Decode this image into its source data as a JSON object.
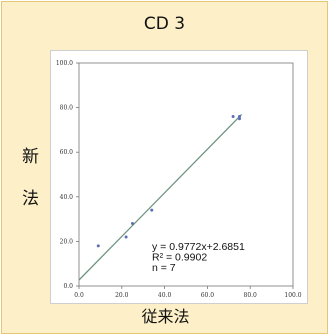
{
  "chart_data": {
    "type": "scatter",
    "title": "CD 3",
    "xlabel": "従来法",
    "ylabel_chars": [
      "新",
      "法"
    ],
    "xlim": [
      0,
      100
    ],
    "ylim": [
      0,
      100
    ],
    "x_ticks": [
      "0.0",
      "20.0",
      "40.0",
      "60.0",
      "80.0",
      "100.0"
    ],
    "y_ticks": [
      "0.0",
      "20.0",
      "40.0",
      "60.0",
      "80.0",
      "100.0"
    ],
    "points": [
      {
        "x": 9,
        "y": 18
      },
      {
        "x": 22,
        "y": 22
      },
      {
        "x": 25,
        "y": 28
      },
      {
        "x": 34,
        "y": 34
      },
      {
        "x": 72,
        "y": 76
      },
      {
        "x": 75,
        "y": 76
      },
      {
        "x": 75,
        "y": 75
      }
    ],
    "regression": {
      "slope": 0.9772,
      "intercept": 2.6851,
      "x_range": [
        0,
        76
      ]
    },
    "annotations": [
      "y = 0.9772x+2.6851",
      "R² = 0.9902",
      "n = 7"
    ],
    "colors": {
      "points": "#5b6fb5",
      "line": "#6e9480",
      "background": "#fdf0c8"
    }
  }
}
